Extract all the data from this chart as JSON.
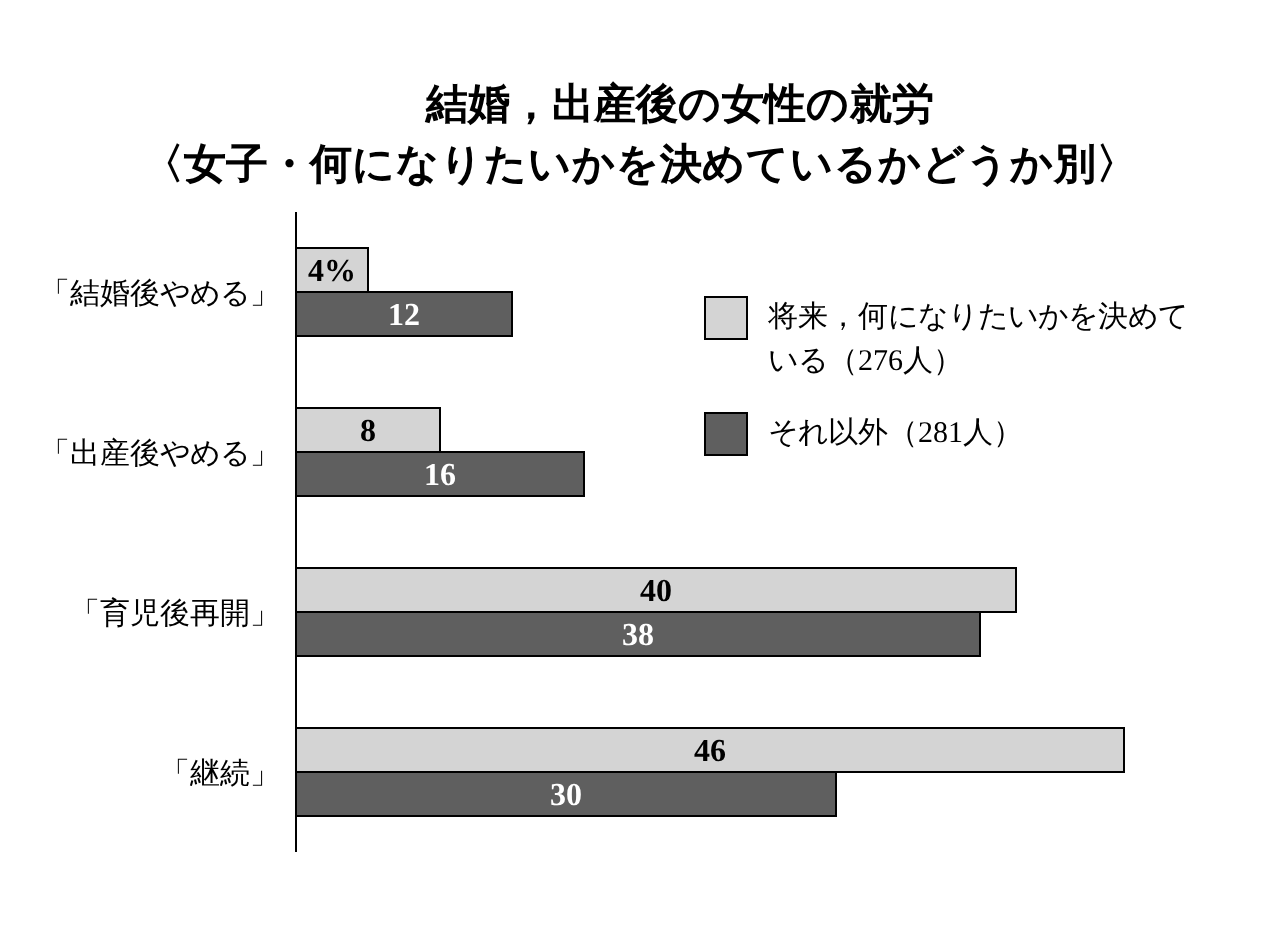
{
  "chart_data": {
    "type": "bar",
    "orientation": "horizontal",
    "title": "結婚，出産後の女性の就労",
    "subtitle": "〈女子・何になりたいかを決めているかどうか別〉",
    "categories": [
      "「結婚後やめる」",
      "「出産後やめる」",
      "「育児後再開」",
      "「継続」"
    ],
    "series": [
      {
        "name": "将来，何になりたいかを決めている（276人）",
        "color": "#d4d4d4",
        "values": [
          4,
          8,
          40,
          46
        ],
        "value_labels": [
          "4%",
          "8",
          "40",
          "46"
        ]
      },
      {
        "name": "それ以外（281人）",
        "color": "#5f5f5f",
        "values": [
          12,
          16,
          38,
          30
        ],
        "value_labels": [
          "12",
          "16",
          "38",
          "30"
        ]
      }
    ],
    "legend": "top right"
  }
}
